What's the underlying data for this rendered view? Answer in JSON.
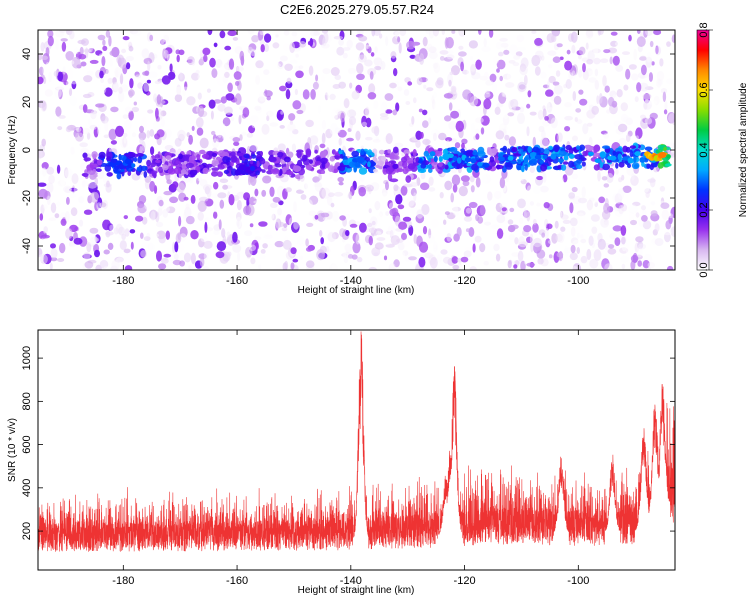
{
  "title": "C2E6.2025.279.05.57.R24",
  "colors": {
    "snr_line": "#ee3333",
    "colormap": [
      "#ffffff",
      "#d8b8f0",
      "#9933ee",
      "#4400ee",
      "#0033ff",
      "#00aaff",
      "#00ddcc",
      "#00cc44",
      "#88dd00",
      "#ffdd00",
      "#ff8800",
      "#ff0000",
      "#ee0099"
    ]
  },
  "chart_data": [
    {
      "type": "heatmap",
      "xlabel": "Height of straight line (km)",
      "ylabel": "Frequency (Hz)",
      "xlim": [
        -195,
        -83
      ],
      "ylim": [
        -50,
        50
      ],
      "x_ticks": [
        -180,
        -160,
        -140,
        -120,
        -100
      ],
      "y_ticks": [
        -40,
        -20,
        0,
        20,
        40
      ],
      "grid": false,
      "colorbar": {
        "label": "Normalized spectral amplitude",
        "range": [
          0,
          0.8
        ],
        "ticks": [
          "0.0",
          "0.2",
          "0.4",
          "0.6",
          "0.8"
        ]
      },
      "features": [
        {
          "x_range": [
            -182,
            -178
          ],
          "freq_hz": -6,
          "amplitude": 0.3
        },
        {
          "x_range": [
            -160,
            -157
          ],
          "freq_hz": -8,
          "amplitude": 0.25
        },
        {
          "x_range": [
            -141,
            -138
          ],
          "freq_hz": -5,
          "amplitude": 0.35
        },
        {
          "x_range": [
            -126,
            -118
          ],
          "freq_hz": -3,
          "amplitude": 0.35
        },
        {
          "x_range": [
            -112,
            -100
          ],
          "freq_hz": -4,
          "amplitude": 0.35
        },
        {
          "x_range": [
            -98,
            -88
          ],
          "freq_hz": -3,
          "amplitude": 0.35
        },
        {
          "x_range": [
            -88,
            -85
          ],
          "freq_hz": -3,
          "amplitude": 0.7
        }
      ]
    },
    {
      "type": "line",
      "xlabel": "Height of straight line (km)",
      "ylabel": "SNR (10 * v/v)",
      "xlim": [
        -195,
        -83
      ],
      "ylim": [
        20,
        1130
      ],
      "x_ticks": [
        -180,
        -160,
        -140,
        -120,
        -100
      ],
      "y_ticks": [
        200,
        400,
        600,
        800,
        1000
      ],
      "grid": false,
      "series": [
        {
          "baseline_snr": [
            [
              -195,
              150
            ],
            [
              -140,
              160
            ],
            [
              -125,
              180
            ],
            [
              -115,
              200
            ],
            [
              -100,
              190
            ],
            [
              -90,
              200
            ],
            [
              -85,
              300
            ],
            [
              -83,
              350
            ]
          ],
          "peaks": [
            [
              -138.2,
              1130
            ],
            [
              -121.8,
              990
            ],
            [
              -122.5,
              600
            ],
            [
              -123.3,
              470
            ],
            [
              -103,
              560
            ],
            [
              -94,
              560
            ],
            [
              -88.5,
              710
            ],
            [
              -86.5,
              830
            ],
            [
              -85.2,
              890
            ]
          ]
        }
      ]
    }
  ]
}
